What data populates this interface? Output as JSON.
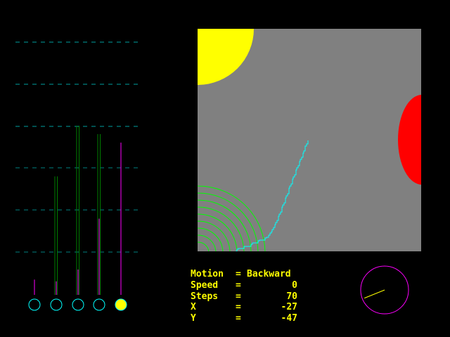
{
  "readout": {
    "motion": {
      "label": "Motion",
      "eq": "=",
      "value": "Backward"
    },
    "speed": {
      "label": "Speed",
      "eq": "=",
      "value": "0"
    },
    "steps": {
      "label": "Steps",
      "eq": "=",
      "value": "70"
    },
    "x": {
      "label": "X",
      "eq": "=",
      "value": "-27"
    },
    "y": {
      "label": "Y",
      "eq": "=",
      "value": "-47"
    }
  },
  "sensors": [
    {
      "active": false,
      "green": null,
      "magenta": 0.09
    },
    {
      "active": false,
      "green": 0.7,
      "magenta": 0.08
    },
    {
      "active": false,
      "green": 1.0,
      "magenta": 0.15
    },
    {
      "active": false,
      "green": 0.95,
      "magenta": 0.45
    },
    {
      "active": true,
      "green": null,
      "magenta": 0.9
    }
  ],
  "heading_deg": 202,
  "colors": {
    "arena": "#808080",
    "light": "#ffff00",
    "obstacle": "#ff0000",
    "trail": "#00ffff",
    "rings": "#00ff00",
    "compass": "#ff00ff",
    "text": "#ffff00"
  }
}
